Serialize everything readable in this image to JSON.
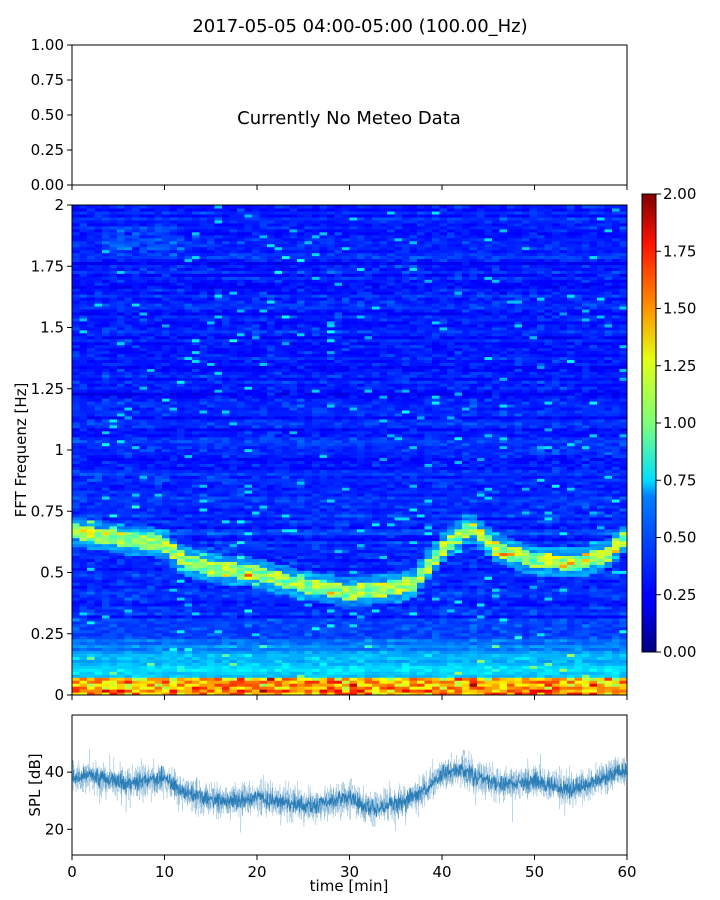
{
  "figure": {
    "title": "2017-05-05 04:00-05:00 (100.00_Hz)"
  },
  "chart_data": [
    {
      "type": "line",
      "role": "meteo-panel",
      "xlim": [
        0,
        60
      ],
      "ylim": [
        0,
        1
      ],
      "yticks": [
        "0.00",
        "0.25",
        "0.50",
        "0.75",
        "1.00"
      ],
      "message": "Currently No Meteo Data",
      "series": []
    },
    {
      "type": "heatmap",
      "role": "spectrogram",
      "colormap": "jet",
      "ylabel": "FFT Frequenz [Hz]",
      "xlim": [
        0,
        60
      ],
      "ylim": [
        0,
        2
      ],
      "yticks": [
        "0",
        "0.25",
        "0.5",
        "0.75",
        "1",
        "1.25",
        "1.5",
        "1.75",
        "2"
      ],
      "colorbar": {
        "range": [
          0,
          2
        ],
        "ticks": [
          "0.00",
          "0.25",
          "0.50",
          "0.75",
          "1.00",
          "1.25",
          "1.50",
          "1.75",
          "2.00"
        ]
      },
      "bright_band": {
        "points": [
          [
            0,
            0.67
          ],
          [
            5,
            0.64
          ],
          [
            10,
            0.62
          ],
          [
            12,
            0.55
          ],
          [
            15,
            0.52
          ],
          [
            20,
            0.5
          ],
          [
            25,
            0.45
          ],
          [
            30,
            0.42
          ],
          [
            35,
            0.44
          ],
          [
            37,
            0.46
          ],
          [
            40,
            0.6
          ],
          [
            43,
            0.69
          ],
          [
            46,
            0.6
          ],
          [
            50,
            0.55
          ],
          [
            55,
            0.54
          ],
          [
            58,
            0.58
          ],
          [
            60,
            0.65
          ]
        ]
      }
    },
    {
      "type": "line",
      "role": "spl",
      "xlabel": "time [min]",
      "ylabel": "SPL [dB]",
      "xlim": [
        0,
        60
      ],
      "ylim": [
        11,
        60
      ],
      "xticks": [
        "0",
        "10",
        "20",
        "30",
        "40",
        "50",
        "60"
      ],
      "yticks": [
        "20",
        "40"
      ],
      "color": "#1f77b4",
      "series": [
        {
          "x": [
            0,
            2,
            4,
            6,
            8,
            10,
            12,
            14,
            16,
            18,
            20,
            22,
            24,
            26,
            28,
            30,
            32,
            34,
            36,
            38,
            40,
            42,
            44,
            46,
            48,
            50,
            52,
            54,
            56,
            58,
            60
          ],
          "values": [
            38,
            39,
            37,
            36,
            37,
            38,
            33,
            31,
            30,
            30,
            31,
            30,
            29,
            28,
            30,
            31,
            27,
            28,
            30,
            33,
            39,
            41,
            38,
            36,
            36,
            37,
            35,
            34,
            36,
            39,
            41
          ]
        }
      ]
    }
  ]
}
